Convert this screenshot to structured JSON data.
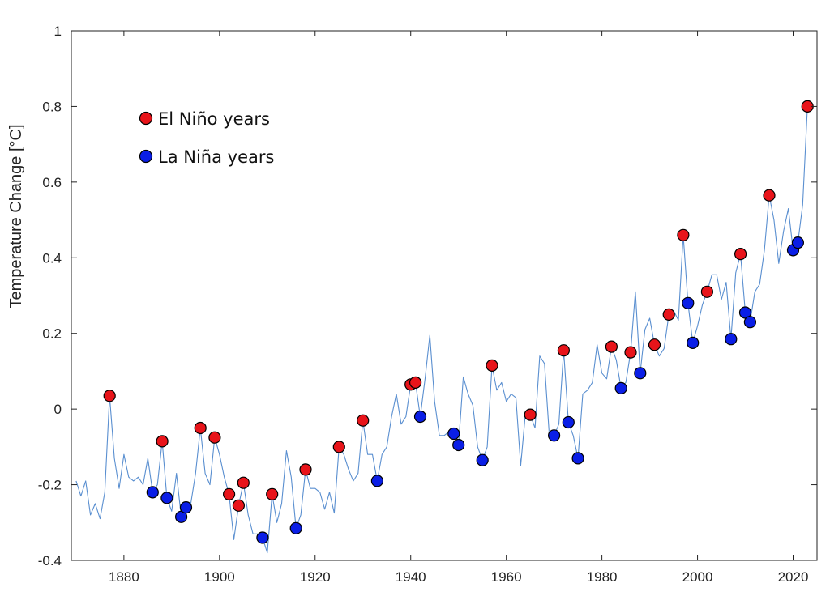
{
  "chart_data": {
    "type": "line",
    "title": "",
    "xlabel": "",
    "ylabel": "Temperature Change [°C]",
    "xlim": [
      1869,
      2025
    ],
    "ylim": [
      -0.4,
      1
    ],
    "x_ticks": [
      1880,
      1900,
      1920,
      1940,
      1960,
      1980,
      2000,
      2020
    ],
    "y_ticks": [
      -0.4,
      -0.2,
      0,
      0.2,
      0.4,
      0.6,
      0.8,
      1
    ],
    "y_tick_labels": [
      "-0.4",
      "-0.2",
      "0",
      "0.2",
      "0.4",
      "0.6",
      "0.8",
      "1"
    ],
    "grid": false,
    "legend_position": "top-left",
    "colors": {
      "line": "#5a8fd0",
      "el_nino": "#e8141a",
      "la_nina": "#0a1ee6",
      "marker_edge": "#000000",
      "axis": "#222222"
    },
    "legend": [
      {
        "label": "El Niño years",
        "color": "#e8141a"
      },
      {
        "label": "La Niña years",
        "color": "#0a1ee6"
      }
    ],
    "series": [
      {
        "type": "line",
        "x": [
          1870,
          1871,
          1872,
          1873,
          1874,
          1875,
          1876,
          1877,
          1878,
          1879,
          1880,
          1881,
          1882,
          1883,
          1884,
          1885,
          1886,
          1887,
          1888,
          1889,
          1890,
          1891,
          1892,
          1893,
          1894,
          1895,
          1896,
          1897,
          1898,
          1899,
          1900,
          1901,
          1902,
          1903,
          1904,
          1905,
          1906,
          1907,
          1908,
          1909,
          1910,
          1911,
          1912,
          1913,
          1914,
          1915,
          1916,
          1917,
          1918,
          1919,
          1920,
          1921,
          1922,
          1923,
          1924,
          1925,
          1926,
          1927,
          1928,
          1929,
          1930,
          1931,
          1932,
          1933,
          1934,
          1935,
          1936,
          1937,
          1938,
          1939,
          1940,
          1941,
          1942,
          1943,
          1944,
          1945,
          1946,
          1947,
          1948,
          1949,
          1950,
          1951,
          1952,
          1953,
          1954,
          1955,
          1956,
          1957,
          1958,
          1959,
          1960,
          1961,
          1962,
          1963,
          1964,
          1965,
          1966,
          1967,
          1968,
          1969,
          1970,
          1971,
          1972,
          1973,
          1974,
          1975,
          1976,
          1977,
          1978,
          1979,
          1980,
          1981,
          1982,
          1983,
          1984,
          1985,
          1986,
          1987,
          1988,
          1989,
          1990,
          1991,
          1992,
          1993,
          1994,
          1995,
          1996,
          1997,
          1998,
          1999,
          2000,
          2001,
          2002,
          2003,
          2004,
          2005,
          2006,
          2007,
          2008,
          2009,
          2010,
          2011,
          2012,
          2013,
          2014,
          2015,
          2016,
          2017,
          2018,
          2019,
          2020,
          2021,
          2022,
          2023
        ],
        "y": [
          -0.19,
          -0.23,
          -0.19,
          -0.28,
          -0.25,
          -0.29,
          -0.22,
          0.035,
          -0.13,
          -0.21,
          -0.12,
          -0.18,
          -0.19,
          -0.18,
          -0.2,
          -0.13,
          -0.22,
          -0.2,
          -0.085,
          -0.235,
          -0.27,
          -0.17,
          -0.285,
          -0.26,
          -0.25,
          -0.17,
          -0.05,
          -0.17,
          -0.2,
          -0.075,
          -0.12,
          -0.18,
          -0.225,
          -0.345,
          -0.255,
          -0.195,
          -0.28,
          -0.33,
          -0.33,
          -0.34,
          -0.38,
          -0.225,
          -0.3,
          -0.25,
          -0.11,
          -0.18,
          -0.315,
          -0.28,
          -0.16,
          -0.21,
          -0.21,
          -0.22,
          -0.265,
          -0.22,
          -0.275,
          -0.1,
          -0.12,
          -0.16,
          -0.19,
          -0.17,
          -0.03,
          -0.12,
          -0.12,
          -0.19,
          -0.12,
          -0.1,
          -0.02,
          0.04,
          -0.04,
          -0.02,
          0.065,
          0.07,
          -0.02,
          0.08,
          0.195,
          0.02,
          -0.07,
          -0.07,
          -0.06,
          -0.065,
          -0.095,
          0.085,
          0.04,
          0.01,
          -0.1,
          -0.135,
          -0.1,
          0.115,
          0.05,
          0.07,
          0.02,
          0.04,
          0.03,
          -0.15,
          -0.01,
          -0.015,
          -0.05,
          0.14,
          0.12,
          -0.07,
          -0.07,
          -0.04,
          0.155,
          -0.035,
          -0.07,
          -0.13,
          0.04,
          0.05,
          0.07,
          0.17,
          0.095,
          0.08,
          0.165,
          0.13,
          0.055,
          0.07,
          0.15,
          0.31,
          0.095,
          0.21,
          0.24,
          0.17,
          0.14,
          0.16,
          0.25,
          0.26,
          0.235,
          0.46,
          0.28,
          0.175,
          0.22,
          0.275,
          0.31,
          0.355,
          0.355,
          0.29,
          0.335,
          0.185,
          0.36,
          0.41,
          0.255,
          0.23,
          0.31,
          0.33,
          0.42,
          0.565,
          0.5,
          0.385,
          0.47,
          0.53,
          0.42,
          0.44,
          0.54,
          0.8
        ]
      },
      {
        "name": "El Niño years",
        "type": "scatter",
        "x": [
          1877,
          1888,
          1896,
          1899,
          1902,
          1904,
          1905,
          1911,
          1918,
          1925,
          1930,
          1940,
          1941,
          1957,
          1965,
          1972,
          1982,
          1986,
          1991,
          1994,
          1997,
          2002,
          2009,
          2015,
          2023
        ],
        "y": [
          0.035,
          -0.085,
          -0.05,
          -0.075,
          -0.225,
          -0.255,
          -0.195,
          -0.225,
          -0.16,
          -0.1,
          -0.03,
          0.065,
          0.07,
          0.115,
          -0.015,
          0.155,
          0.165,
          0.15,
          0.17,
          0.25,
          0.46,
          0.31,
          0.41,
          0.565,
          0.8
        ]
      },
      {
        "name": "La Niña years",
        "type": "scatter",
        "x": [
          1886,
          1889,
          1892,
          1893,
          1909,
          1916,
          1933,
          1942,
          1949,
          1950,
          1955,
          1970,
          1973,
          1975,
          1984,
          1988,
          1998,
          1999,
          2007,
          2010,
          2011,
          2020,
          2021
        ],
        "y": [
          -0.22,
          -0.235,
          -0.285,
          -0.26,
          -0.34,
          -0.315,
          -0.19,
          -0.02,
          -0.065,
          -0.095,
          -0.135,
          -0.07,
          -0.035,
          -0.13,
          0.055,
          0.095,
          0.28,
          0.175,
          0.185,
          0.255,
          0.23,
          0.42,
          0.44
        ]
      }
    ]
  }
}
